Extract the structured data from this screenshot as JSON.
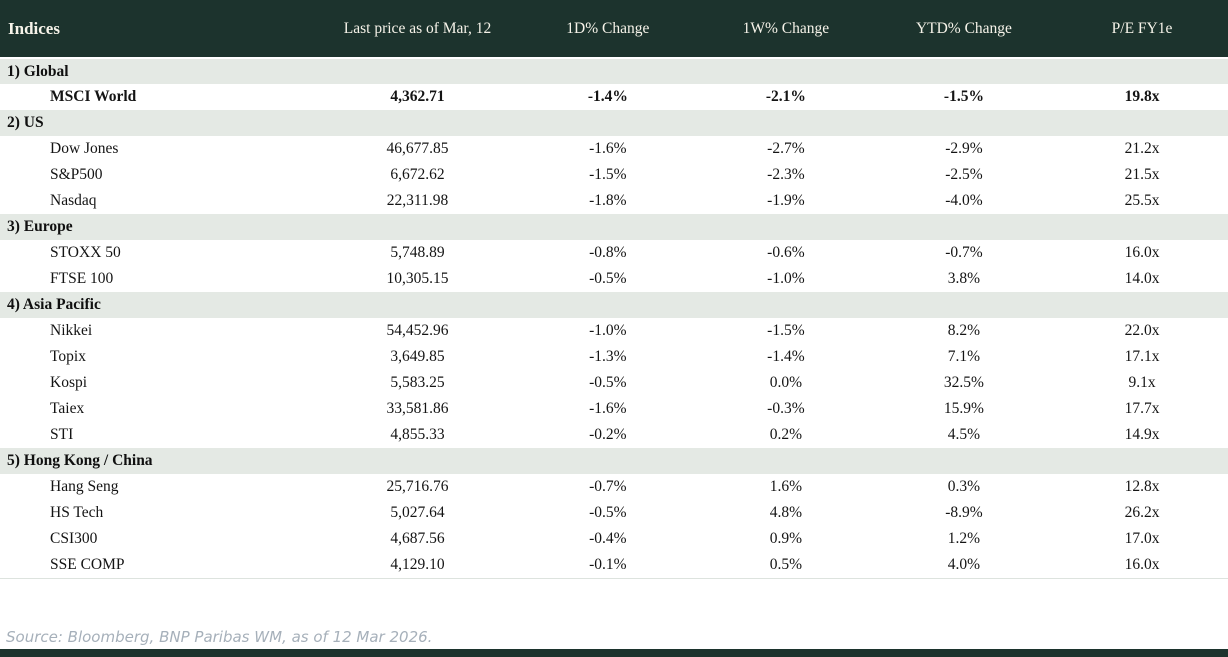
{
  "chart_data": {
    "type": "table",
    "title": "Indices",
    "columns": [
      "Indices",
      "Last price as of Mar, 12",
      "1D% Change",
      "1W% Change",
      "YTD% Change",
      "P/E FY1e"
    ],
    "colors": {
      "header_bg": "#1c332d",
      "header_text": "#f6f3e9",
      "section_bg": "#e4e9e4",
      "negative": "#c00000",
      "positive": "#0a8c3e"
    },
    "sections": [
      {
        "label": "1) Global",
        "rows": [
          {
            "name": "MSCI World",
            "bold": true,
            "price": "4,362.71",
            "d1": {
              "v": "-1.4%",
              "tone": "neg"
            },
            "w1": {
              "v": "-2.1%",
              "tone": "neg"
            },
            "ytd": {
              "v": "-1.5%",
              "tone": "neg"
            },
            "pe": "19.8x"
          }
        ]
      },
      {
        "label": "2) US",
        "rows": [
          {
            "name": "Dow Jones",
            "bold": false,
            "price": "46,677.85",
            "d1": {
              "v": "-1.6%",
              "tone": "neg"
            },
            "w1": {
              "v": "-2.7%",
              "tone": "neg"
            },
            "ytd": {
              "v": "-2.9%",
              "tone": "neg"
            },
            "pe": "21.2x"
          },
          {
            "name": "S&P500",
            "bold": false,
            "price": "6,672.62",
            "d1": {
              "v": "-1.5%",
              "tone": "neg"
            },
            "w1": {
              "v": "-2.3%",
              "tone": "neg"
            },
            "ytd": {
              "v": "-2.5%",
              "tone": "neg"
            },
            "pe": "21.5x"
          },
          {
            "name": "Nasdaq",
            "bold": false,
            "price": "22,311.98",
            "d1": {
              "v": "-1.8%",
              "tone": "neg"
            },
            "w1": {
              "v": "-1.9%",
              "tone": "neg"
            },
            "ytd": {
              "v": "-4.0%",
              "tone": "neg"
            },
            "pe": "25.5x"
          }
        ]
      },
      {
        "label": "3) Europe",
        "rows": [
          {
            "name": "STOXX 50",
            "bold": false,
            "price": "5,748.89",
            "d1": {
              "v": "-0.8%",
              "tone": "neg"
            },
            "w1": {
              "v": "-0.6%",
              "tone": "neg"
            },
            "ytd": {
              "v": "-0.7%",
              "tone": "neg"
            },
            "pe": "16.0x"
          },
          {
            "name": "FTSE 100",
            "bold": false,
            "price": "10,305.15",
            "d1": {
              "v": "-0.5%",
              "tone": "neg"
            },
            "w1": {
              "v": "-1.0%",
              "tone": "neg"
            },
            "ytd": {
              "v": "3.8%",
              "tone": "pos"
            },
            "pe": "14.0x"
          }
        ]
      },
      {
        "label": "4) Asia Pacific",
        "rows": [
          {
            "name": "Nikkei",
            "bold": false,
            "price": "54,452.96",
            "d1": {
              "v": "-1.0%",
              "tone": "neg"
            },
            "w1": {
              "v": "-1.5%",
              "tone": "neg"
            },
            "ytd": {
              "v": "8.2%",
              "tone": "pos"
            },
            "pe": "22.0x"
          },
          {
            "name": "Topix",
            "bold": false,
            "price": "3,649.85",
            "d1": {
              "v": "-1.3%",
              "tone": "neg"
            },
            "w1": {
              "v": "-1.4%",
              "tone": "neg"
            },
            "ytd": {
              "v": "7.1%",
              "tone": "pos"
            },
            "pe": "17.1x"
          },
          {
            "name": "Kospi",
            "bold": false,
            "price": "5,583.25",
            "d1": {
              "v": "-0.5%",
              "tone": "neg"
            },
            "w1": {
              "v": "0.0%",
              "tone": "neg"
            },
            "ytd": {
              "v": "32.5%",
              "tone": "pos"
            },
            "pe": "9.1x"
          },
          {
            "name": "Taiex",
            "bold": false,
            "price": "33,581.86",
            "d1": {
              "v": "-1.6%",
              "tone": "neg"
            },
            "w1": {
              "v": "-0.3%",
              "tone": "neg"
            },
            "ytd": {
              "v": "15.9%",
              "tone": "pos"
            },
            "pe": "17.7x"
          },
          {
            "name": "STI",
            "bold": false,
            "price": "4,855.33",
            "d1": {
              "v": "-0.2%",
              "tone": "neg"
            },
            "w1": {
              "v": "0.2%",
              "tone": "pos"
            },
            "ytd": {
              "v": "4.5%",
              "tone": "pos"
            },
            "pe": "14.9x"
          }
        ]
      },
      {
        "label": "5) Hong Kong / China",
        "rows": [
          {
            "name": "Hang Seng",
            "bold": false,
            "price": "25,716.76",
            "d1": {
              "v": "-0.7%",
              "tone": "neg"
            },
            "w1": {
              "v": "1.6%",
              "tone": "pos"
            },
            "ytd": {
              "v": "0.3%",
              "tone": "pos"
            },
            "pe": "12.8x"
          },
          {
            "name": "HS Tech",
            "bold": false,
            "price": "5,027.64",
            "d1": {
              "v": "-0.5%",
              "tone": "neg"
            },
            "w1": {
              "v": "4.8%",
              "tone": "pos"
            },
            "ytd": {
              "v": "-8.9%",
              "tone": "neg"
            },
            "pe": "26.2x"
          },
          {
            "name": "CSI300",
            "bold": false,
            "price": "4,687.56",
            "d1": {
              "v": "-0.4%",
              "tone": "neg"
            },
            "w1": {
              "v": "0.9%",
              "tone": "pos"
            },
            "ytd": {
              "v": "1.2%",
              "tone": "pos"
            },
            "pe": "17.0x"
          },
          {
            "name": "SSE COMP",
            "bold": false,
            "price": "4,129.10",
            "d1": {
              "v": "-0.1%",
              "tone": "neg"
            },
            "w1": {
              "v": "0.5%",
              "tone": "pos"
            },
            "ytd": {
              "v": "4.0%",
              "tone": "pos"
            },
            "pe": "16.0x"
          }
        ]
      }
    ]
  },
  "footer": {
    "source": "Source: Bloomberg, BNP Paribas WM, as of 12 Mar 2026."
  }
}
